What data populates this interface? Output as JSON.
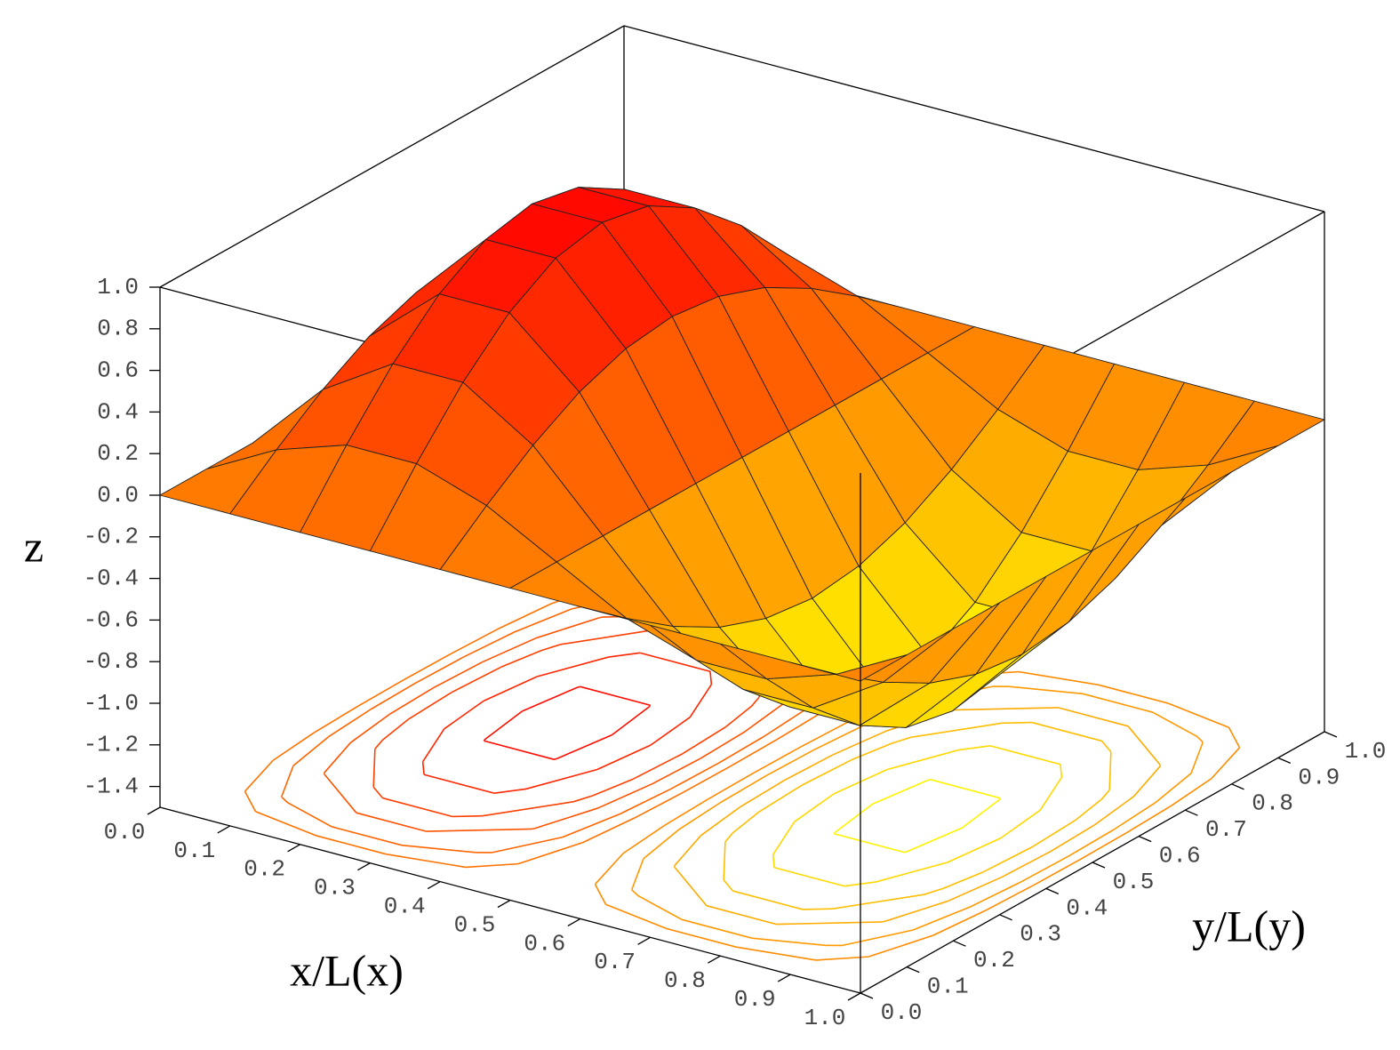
{
  "chart_data": {
    "type": "surface",
    "xlabel": "x/L(x)",
    "ylabel": "y/L(y)",
    "zlabel": "z",
    "x": [
      0,
      0.1,
      0.2,
      0.3,
      0.4,
      0.5,
      0.6,
      0.7,
      0.8,
      0.9,
      1
    ],
    "y": [
      0,
      0.1,
      0.2,
      0.3,
      0.4,
      0.5,
      0.6,
      0.7,
      0.8,
      0.9,
      1
    ],
    "z": [
      [
        0,
        0,
        0,
        0,
        0,
        0,
        0,
        0,
        0,
        0,
        0
      ],
      [
        0,
        0.182,
        0.346,
        0.476,
        0.559,
        0.588,
        0.559,
        0.476,
        0.346,
        0.182,
        0
      ],
      [
        0,
        0.294,
        0.559,
        0.769,
        0.905,
        0.951,
        0.905,
        0.769,
        0.559,
        0.294,
        0
      ],
      [
        0,
        0.294,
        0.559,
        0.769,
        0.905,
        0.951,
        0.905,
        0.769,
        0.559,
        0.294,
        0
      ],
      [
        0,
        0.182,
        0.346,
        0.476,
        0.559,
        0.588,
        0.559,
        0.476,
        0.346,
        0.182,
        0
      ],
      [
        0,
        0,
        0,
        0,
        0,
        0,
        0,
        0,
        0,
        0,
        0
      ],
      [
        0,
        -0.182,
        -0.346,
        -0.476,
        -0.559,
        -0.588,
        -0.559,
        -0.476,
        -0.346,
        -0.182,
        0
      ],
      [
        0,
        -0.294,
        -0.559,
        -0.769,
        -0.905,
        -0.951,
        -0.905,
        -0.769,
        -0.559,
        -0.294,
        0
      ],
      [
        0,
        -0.294,
        -0.559,
        -0.769,
        -0.905,
        -0.951,
        -0.905,
        -0.769,
        -0.559,
        -0.294,
        0
      ],
      [
        0,
        -0.182,
        -0.346,
        -0.476,
        -0.559,
        -0.588,
        -0.559,
        -0.476,
        -0.346,
        -0.182,
        0
      ],
      [
        0,
        0,
        0,
        0,
        0,
        0,
        0,
        0,
        0,
        0,
        0
      ]
    ],
    "contour_levels": [
      -0.9,
      -0.7,
      -0.5,
      -0.35,
      -0.2,
      -0.1,
      0.1,
      0.2,
      0.35,
      0.5,
      0.7,
      0.9
    ],
    "xlim": [
      0,
      1
    ],
    "ylim": [
      0,
      1
    ],
    "zlim": [
      -1.5,
      1
    ],
    "xticks": [
      {
        "value": 0,
        "label": "0.0"
      },
      0.1,
      0.2,
      0.3,
      0.4,
      0.5,
      0.6,
      0.7,
      0.8,
      0.9,
      {
        "value": 1,
        "label": "1.0"
      }
    ],
    "yticks": [
      {
        "value": 0,
        "label": "0.0"
      },
      0.1,
      0.2,
      0.3,
      0.4,
      0.5,
      0.6,
      0.7,
      0.8,
      0.9,
      {
        "value": 1,
        "label": "1.0"
      }
    ],
    "zticks": [
      -1.4,
      -1.2,
      {
        "value": -1,
        "label": "-1.0"
      },
      -0.8,
      -0.6,
      -0.4,
      -0.2,
      {
        "value": 0,
        "label": "0.0"
      },
      0.2,
      0.4,
      0.6,
      0.8,
      {
        "value": 1,
        "label": "1.0"
      }
    ]
  }
}
